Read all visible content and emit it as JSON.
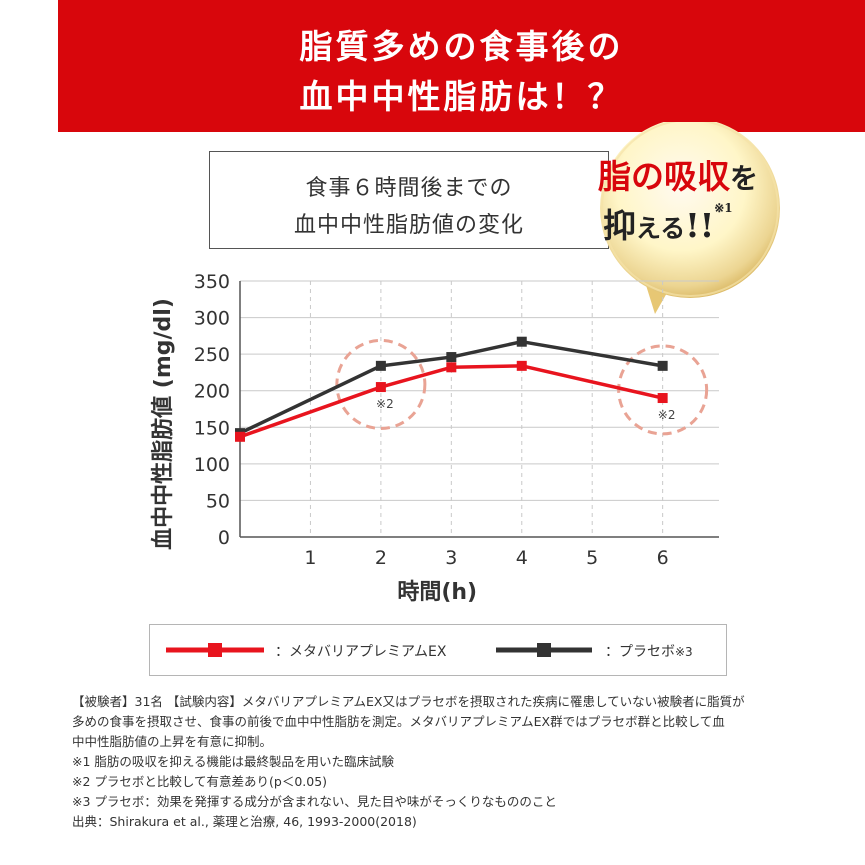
{
  "banner": {
    "line1": "脂質多めの食事後の",
    "line2": "血中中性脂肪は！？"
  },
  "subtitle": {
    "line1": "食事６時間後までの",
    "line2": "血中中性脂肪値の変化"
  },
  "badge": {
    "line1_main": "脂の吸収",
    "line1_particle": "を",
    "line2_main": "抑",
    "line2_small": "える",
    "line2_exclaim": "!!",
    "line2_note": "※1",
    "colors": {
      "gold_light": "#fff6c8",
      "gold_dark": "#d7b35c",
      "accent": "#d8060c"
    }
  },
  "legend": {
    "series1": "：メタバリアプレミアムEX",
    "series2_text": "：プラセボ",
    "series2_note": "※3"
  },
  "chart_data": {
    "type": "line",
    "xlabel": "時間(h)",
    "ylabel": "血中中性脂肪値 (mg/dl)",
    "x": [
      0,
      1,
      2,
      3,
      4,
      5,
      6
    ],
    "x_tick_labels": [
      "",
      "1",
      "2",
      "3",
      "4",
      "5",
      "6"
    ],
    "xlim": [
      0,
      6.8
    ],
    "ylim": [
      0,
      350
    ],
    "y_ticks": [
      0,
      50,
      100,
      150,
      200,
      250,
      300,
      350
    ],
    "grid": true,
    "legend_position": "bottom",
    "series": [
      {
        "name": "メタバリアプレミアムEX",
        "color": "#e8141e",
        "x": [
          0,
          2,
          3,
          4,
          6
        ],
        "y": [
          137,
          205,
          232,
          234,
          190
        ]
      },
      {
        "name": "プラセボ",
        "color": "#333333",
        "x": [
          0,
          2,
          3,
          4,
          6
        ],
        "y": [
          142,
          234,
          246,
          267,
          234
        ]
      }
    ],
    "annotations": [
      {
        "x": 2,
        "text": "※2"
      },
      {
        "x": 6,
        "text": "※2"
      }
    ]
  },
  "notes": [
    "【被験者】31名 【試験内容】メタバリアプレミアムEX又はプラセボを摂取された疾病に罹患していない被験者に脂質が",
    "多めの食事を摂取させ、食事の前後で血中中性脂肪を測定。メタバリアプレミアムEX群ではプラセボ群と比較して血",
    "中中性脂肪値の上昇を有意に抑制。",
    "※1 脂肪の吸収を抑える機能は最終製品を用いた臨床試験",
    "※2 プラセボと比較して有意差あり(p＜0.05)",
    "※3 プラセボ：効果を発揮する成分が含まれない、見た目や味がそっくりなもののこと",
    "出典：Shirakura et al., 薬理と治療, 46, 1993-2000(2018)"
  ]
}
